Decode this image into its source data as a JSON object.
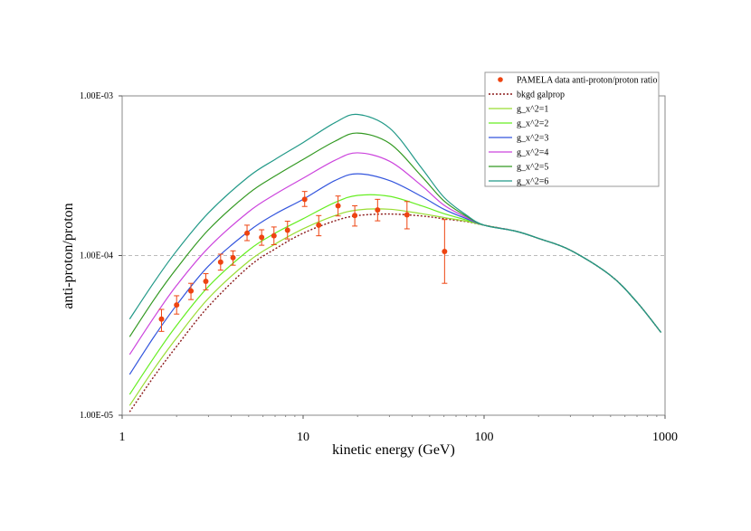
{
  "chart_data": {
    "type": "line",
    "xscale": "log",
    "yscale": "log",
    "xlabel": "kinetic energy (GeV)",
    "ylabel": "anti-proton/proton",
    "xlim": [
      1,
      1000
    ],
    "ylim": [
      1e-05,
      0.001
    ],
    "x_ticks": [
      {
        "value": 1,
        "label": "1"
      },
      {
        "value": 10,
        "label": "10"
      },
      {
        "value": 100,
        "label": "100"
      },
      {
        "value": 1000,
        "label": "1000"
      }
    ],
    "y_ticks": [
      {
        "value": 1e-05,
        "label": "1.00E-05"
      },
      {
        "value": 0.0001,
        "label": "1.00E-04"
      },
      {
        "value": 0.001,
        "label": "1.00E-03"
      }
    ],
    "gridlines": "horizontal-dashed",
    "legend_position": "top-right",
    "series": [
      {
        "name": "bkgd galprop",
        "color": "#8b1a1a",
        "style": "dotted",
        "x": [
          1.1,
          1.5,
          2,
          3,
          5,
          7,
          10,
          15,
          20,
          30,
          45,
          60,
          80,
          100,
          150,
          200,
          300,
          500,
          700,
          950
        ],
        "y": [
          1.05e-05,
          1.75e-05,
          2.7e-05,
          4.8e-05,
          8.5e-05,
          0.00011,
          0.000138,
          0.000165,
          0.000178,
          0.000182,
          0.000177,
          0.00017,
          0.000163,
          0.000155,
          0.000142,
          0.000128,
          0.000108,
          7.5e-05,
          5.1e-05,
          3.3e-05
        ]
      },
      {
        "name": "g_x^2=1",
        "color": "#99dd33",
        "style": "solid",
        "x": [
          1.1,
          1.5,
          2,
          3,
          5,
          7,
          10,
          15,
          20,
          30,
          45,
          60,
          80,
          100,
          150,
          200,
          300,
          500,
          700,
          950
        ],
        "y": [
          1.15e-05,
          1.95e-05,
          3.05e-05,
          5.4e-05,
          9.2e-05,
          0.000118,
          0.000147,
          0.000178,
          0.000193,
          0.000195,
          0.000183,
          0.000173,
          0.000164,
          0.000155,
          0.000142,
          0.000128,
          0.000108,
          7.5e-05,
          5.1e-05,
          3.3e-05
        ]
      },
      {
        "name": "g_x^2=2",
        "color": "#66ee22",
        "style": "solid",
        "x": [
          1.1,
          1.5,
          2,
          3,
          5,
          7,
          10,
          15,
          20,
          30,
          45,
          60,
          80,
          100,
          150,
          200,
          300,
          500,
          700,
          950
        ],
        "y": [
          1.35e-05,
          2.3e-05,
          3.65e-05,
          6.4e-05,
          0.000108,
          0.000138,
          0.00017,
          0.000215,
          0.000238,
          0.000235,
          0.000205,
          0.000183,
          0.000167,
          0.000155,
          0.000142,
          0.000128,
          0.000108,
          7.5e-05,
          5.1e-05,
          3.3e-05
        ]
      },
      {
        "name": "g_x^2=3",
        "color": "#3355dd",
        "style": "solid",
        "x": [
          1.1,
          1.5,
          2,
          3,
          5,
          7,
          10,
          15,
          20,
          30,
          45,
          60,
          80,
          100,
          150,
          200,
          300,
          500,
          700,
          950
        ],
        "y": [
          1.8e-05,
          3.1e-05,
          4.9e-05,
          8.6e-05,
          0.000142,
          0.000182,
          0.000225,
          0.000295,
          0.000325,
          0.000295,
          0.000235,
          0.000195,
          0.00017,
          0.000155,
          0.000142,
          0.000128,
          0.000108,
          7.5e-05,
          5.1e-05,
          3.3e-05
        ]
      },
      {
        "name": "g_x^2=4",
        "color": "#cc44dd",
        "style": "solid",
        "x": [
          1.1,
          1.5,
          2,
          3,
          5,
          7,
          10,
          15,
          20,
          30,
          45,
          60,
          80,
          100,
          150,
          200,
          300,
          500,
          700,
          950
        ],
        "y": [
          2.4e-05,
          4.1e-05,
          6.5e-05,
          0.000112,
          0.000188,
          0.000242,
          0.000305,
          0.000395,
          0.00044,
          0.00039,
          0.000275,
          0.000207,
          0.000173,
          0.000155,
          0.000142,
          0.000128,
          0.000108,
          7.5e-05,
          5.1e-05,
          3.3e-05
        ]
      },
      {
        "name": "g_x^2=5",
        "color": "#339922",
        "style": "solid",
        "x": [
          1.1,
          1.5,
          2,
          3,
          5,
          7,
          10,
          15,
          20,
          30,
          45,
          60,
          80,
          100,
          150,
          200,
          300,
          500,
          700,
          950
        ],
        "y": [
          3.1e-05,
          5.3e-05,
          8.3e-05,
          0.000145,
          0.000245,
          0.000315,
          0.0004,
          0.00052,
          0.000585,
          0.000505,
          0.000315,
          0.00022,
          0.000176,
          0.000155,
          0.000142,
          0.000128,
          0.000108,
          7.5e-05,
          5.1e-05,
          3.3e-05
        ]
      },
      {
        "name": "g_x^2=6",
        "color": "#229988",
        "style": "solid",
        "x": [
          1.1,
          1.5,
          2,
          3,
          5,
          7,
          10,
          15,
          20,
          30,
          45,
          60,
          80,
          100,
          150,
          200,
          300,
          500,
          700,
          950
        ],
        "y": [
          4e-05,
          6.8e-05,
          0.000107,
          0.000185,
          0.000312,
          0.0004,
          0.00051,
          0.00068,
          0.000765,
          0.00063,
          0.000355,
          0.000232,
          0.000179,
          0.000155,
          0.000142,
          0.000128,
          0.000108,
          7.5e-05,
          5.1e-05,
          3.3e-05
        ]
      }
    ],
    "pamela": {
      "name": "PAMELA data anti-proton/proton ratio",
      "color": "#ee4411",
      "points": [
        {
          "x": 1.65,
          "y": 4e-05,
          "lo": 3.35e-05,
          "hi": 4.6e-05
        },
        {
          "x": 2.0,
          "y": 4.9e-05,
          "lo": 4.3e-05,
          "hi": 5.6e-05
        },
        {
          "x": 2.4,
          "y": 6e-05,
          "lo": 5.3e-05,
          "hi": 6.7e-05
        },
        {
          "x": 2.9,
          "y": 6.9e-05,
          "lo": 6.1e-05,
          "hi": 7.7e-05
        },
        {
          "x": 3.5,
          "y": 9.1e-05,
          "lo": 8.1e-05,
          "hi": 0.000102
        },
        {
          "x": 4.1,
          "y": 9.7e-05,
          "lo": 8.7e-05,
          "hi": 0.000107
        },
        {
          "x": 4.9,
          "y": 0.000138,
          "lo": 0.000124,
          "hi": 0.000155
        },
        {
          "x": 5.9,
          "y": 0.00013,
          "lo": 0.000116,
          "hi": 0.000145
        },
        {
          "x": 6.9,
          "y": 0.000133,
          "lo": 0.000117,
          "hi": 0.000151
        },
        {
          "x": 8.2,
          "y": 0.000144,
          "lo": 0.000127,
          "hi": 0.000164
        },
        {
          "x": 10.2,
          "y": 0.000225,
          "lo": 0.000203,
          "hi": 0.000252
        },
        {
          "x": 12.2,
          "y": 0.000155,
          "lo": 0.000133,
          "hi": 0.000178
        },
        {
          "x": 15.6,
          "y": 0.000205,
          "lo": 0.000177,
          "hi": 0.000236
        },
        {
          "x": 19.3,
          "y": 0.000178,
          "lo": 0.000153,
          "hi": 0.000205
        },
        {
          "x": 25.8,
          "y": 0.000193,
          "lo": 0.000165,
          "hi": 0.000225
        },
        {
          "x": 37.5,
          "y": 0.00018,
          "lo": 0.000147,
          "hi": 0.000218
        },
        {
          "x": 60.5,
          "y": 0.000106,
          "lo": 6.7e-05,
          "hi": 0.000168
        }
      ]
    }
  }
}
